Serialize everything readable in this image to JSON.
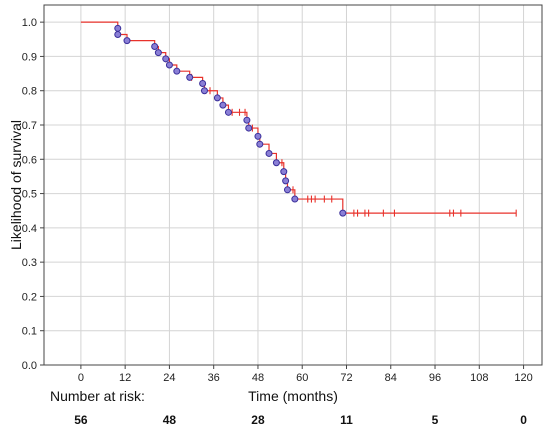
{
  "chart_data": {
    "type": "line",
    "title": "",
    "xlabel": "Time (months)",
    "ylabel": "Likelihood of survival",
    "xlim": [
      -10,
      125
    ],
    "ylim": [
      0,
      1.05
    ],
    "grid": true,
    "x_ticks": [
      0,
      12,
      24,
      36,
      48,
      60,
      72,
      84,
      96,
      108,
      120
    ],
    "y_ticks": [
      0.0,
      0.1,
      0.2,
      0.3,
      0.4,
      0.5,
      0.6,
      0.7,
      0.8,
      0.9,
      1.0
    ],
    "colors": {
      "curve": "#e8322b",
      "event_marker_fill": "#8a7fd6",
      "event_marker_stroke": "#3a2f9a",
      "grid": "#d4d4d4"
    },
    "series": [
      {
        "steps": [
          [
            0,
            1.0
          ],
          [
            10,
            0.982
          ],
          [
            10,
            0.964
          ],
          [
            12.5,
            0.946
          ],
          [
            20,
            0.929
          ],
          [
            21,
            0.911
          ],
          [
            23,
            0.893
          ],
          [
            24,
            0.875
          ],
          [
            26,
            0.857
          ],
          [
            29.5,
            0.839
          ],
          [
            33,
            0.821
          ],
          [
            33.5,
            0.8
          ],
          [
            37,
            0.779
          ],
          [
            38.5,
            0.758
          ],
          [
            40,
            0.737
          ],
          [
            45,
            0.714
          ],
          [
            45.5,
            0.691
          ],
          [
            48,
            0.667
          ],
          [
            48.5,
            0.644
          ],
          [
            51,
            0.617
          ],
          [
            53,
            0.59
          ],
          [
            55,
            0.564
          ],
          [
            55.5,
            0.537
          ],
          [
            56,
            0.511
          ],
          [
            58,
            0.484
          ],
          [
            71,
            0.443
          ],
          [
            118,
            0.443
          ]
        ],
        "event_markers_x": [
          10,
          10,
          12.5,
          20,
          21,
          23,
          24,
          26,
          29.5,
          33,
          33.5,
          37,
          38.5,
          40,
          45,
          45.5,
          48,
          48.5,
          51,
          53,
          55,
          55.5,
          56,
          58,
          71
        ],
        "censored_x": [
          23,
          30,
          35,
          41,
          43,
          44.5,
          46.5,
          54.5,
          57.5,
          61.5,
          62.5,
          63.5,
          66,
          68,
          74,
          75,
          77,
          78,
          82,
          85,
          100,
          101,
          103,
          118
        ]
      }
    ]
  },
  "risk_table": {
    "label": "Number at risk:",
    "values": [
      "56",
      "48",
      "28",
      "11",
      "5",
      "0"
    ],
    "at_x": [
      0,
      24,
      48,
      72,
      96,
      120
    ]
  }
}
